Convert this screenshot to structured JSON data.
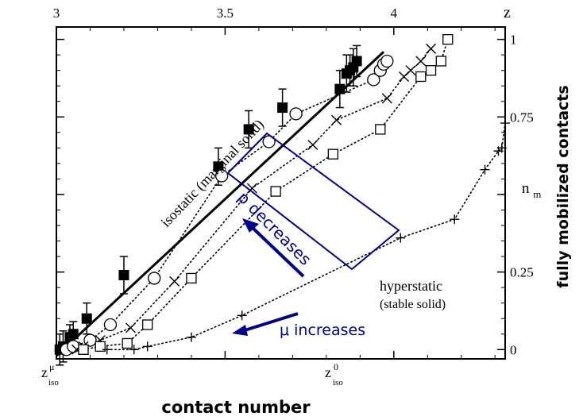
{
  "chart_data": {
    "type": "scatter",
    "title": "",
    "xlabel": "contact number",
    "ylabel": "fully mobilized contacts",
    "ylabel_inner": "n",
    "ylabel_inner_sub": "m",
    "top_axis_label": "z",
    "grid": false,
    "x_top_ticks": [
      3,
      3.5,
      4
    ],
    "x_top_tick_labels": [
      "3",
      "3.5",
      "4"
    ],
    "xlim": [
      3.0,
      4.33
    ],
    "y_ticks": [
      0,
      0.25,
      0.75,
      1
    ],
    "y_tick_labels": [
      "0",
      "0.25",
      "0.75",
      "1"
    ],
    "ylim": [
      -0.03,
      1.04
    ],
    "x_bottom_labels": [
      {
        "main": "z",
        "sup": "μ",
        "sub": "iso",
        "x": 3.0
      },
      {
        "main": "z",
        "sup": "0",
        "sub": "iso",
        "x": 3.93
      }
    ],
    "annotations": {
      "isostatic": "isostatic (marginal solid)",
      "hyperstatic": "hyperstatic",
      "stable": "(stable solid)",
      "mu": "μ increases",
      "p": "p decreases"
    },
    "isostatic_line": {
      "from": [
        3.0,
        -0.02
      ],
      "to": [
        3.97,
        0.96
      ]
    },
    "series": [
      {
        "marker": "filled-square",
        "points": [
          [
            3.01,
            0.0
          ],
          [
            3.02,
            0.01
          ],
          [
            3.04,
            0.04
          ],
          [
            3.05,
            0.05
          ],
          [
            3.09,
            0.1
          ],
          [
            3.2,
            0.24
          ],
          [
            3.48,
            0.59
          ],
          [
            3.57,
            0.71
          ],
          [
            3.67,
            0.78
          ],
          [
            3.84,
            0.84
          ],
          [
            3.86,
            0.89
          ],
          [
            3.87,
            0.9
          ],
          [
            3.88,
            0.91
          ],
          [
            3.89,
            0.93
          ]
        ],
        "errors": [
          0.05,
          0.05,
          0.04,
          0.04,
          0.05,
          0.06,
          0.06,
          0.06,
          0.06,
          0.06,
          0.06,
          0.05,
          0.06,
          0.05
        ]
      },
      {
        "marker": "open-circle",
        "points": [
          [
            3.03,
            0.0
          ],
          [
            3.05,
            0.01
          ],
          [
            3.1,
            0.03
          ],
          [
            3.16,
            0.08
          ],
          [
            3.29,
            0.23
          ],
          [
            3.49,
            0.56
          ],
          [
            3.63,
            0.67
          ],
          [
            3.71,
            0.76
          ],
          [
            3.94,
            0.87
          ],
          [
            3.96,
            0.9
          ],
          [
            3.97,
            0.92
          ],
          [
            3.98,
            0.93
          ]
        ]
      },
      {
        "marker": "cross",
        "points": [
          [
            3.06,
            0.0
          ],
          [
            3.08,
            0.01
          ],
          [
            3.13,
            0.03
          ],
          [
            3.22,
            0.07
          ],
          [
            3.35,
            0.22
          ],
          [
            3.58,
            0.52
          ],
          [
            3.76,
            0.66
          ],
          [
            3.83,
            0.74
          ],
          [
            3.98,
            0.81
          ],
          [
            4.03,
            0.88
          ],
          [
            4.05,
            0.9
          ],
          [
            4.08,
            0.93
          ],
          [
            4.11,
            0.97
          ]
        ]
      },
      {
        "marker": "open-square",
        "points": [
          [
            3.08,
            0.0
          ],
          [
            3.13,
            0.01
          ],
          [
            3.21,
            0.02
          ],
          [
            3.27,
            0.08
          ],
          [
            3.4,
            0.23
          ],
          [
            3.65,
            0.51
          ],
          [
            3.82,
            0.63
          ],
          [
            3.96,
            0.71
          ],
          [
            4.08,
            0.88
          ],
          [
            4.11,
            0.9
          ],
          [
            4.14,
            0.93
          ],
          [
            4.16,
            1.0
          ]
        ]
      },
      {
        "marker": "plus",
        "points": [
          [
            3.15,
            0.0
          ],
          [
            3.23,
            0.0
          ],
          [
            3.27,
            0.01
          ],
          [
            3.4,
            0.04
          ],
          [
            3.55,
            0.11
          ],
          [
            4.02,
            0.36
          ],
          [
            4.18,
            0.42
          ],
          [
            4.27,
            0.58
          ],
          [
            4.31,
            0.64
          ],
          [
            4.32,
            0.65
          ],
          [
            4.33,
            0.73
          ]
        ]
      }
    ]
  },
  "colors": {
    "annotation": "#00008b",
    "ink": "#000000"
  }
}
